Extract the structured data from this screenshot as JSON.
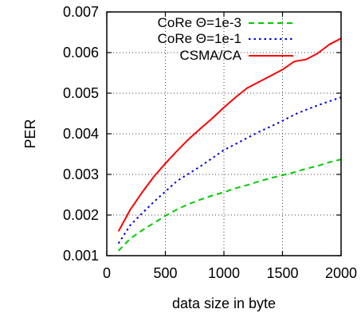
{
  "chart_data": {
    "type": "line",
    "xlabel": "data size in byte",
    "ylabel": "PER",
    "xlim": [
      0,
      2000
    ],
    "ylim": [
      0.001,
      0.007
    ],
    "x_ticks": [
      0,
      500,
      1000,
      1500,
      2000
    ],
    "y_ticks": [
      0.001,
      0.002,
      0.003,
      0.004,
      0.005,
      0.006,
      0.007
    ],
    "x_tick_labels": [
      "0",
      "500",
      "1000",
      "1500",
      "2000"
    ],
    "y_tick_labels": [
      "0.001",
      "0.002",
      "0.003",
      "0.004",
      "0.005",
      "0.006",
      "0.007"
    ],
    "grid": true,
    "legend_position": "top-right",
    "series": [
      {
        "name": "CoRe Θ=1e-3",
        "color": "#00cc00",
        "style": "dashed",
        "x": [
          100,
          200,
          300,
          400,
          500,
          600,
          700,
          800,
          900,
          1000,
          1100,
          1200,
          1300,
          1400,
          1500,
          1600,
          1700,
          1800,
          1900,
          2000
        ],
        "y": [
          0.00112,
          0.00142,
          0.00162,
          0.0018,
          0.00198,
          0.00214,
          0.00227,
          0.00238,
          0.00248,
          0.00256,
          0.00266,
          0.00274,
          0.00283,
          0.00291,
          0.00298,
          0.00305,
          0.00314,
          0.00321,
          0.0033,
          0.00337
        ]
      },
      {
        "name": "CoRe Θ=1e-1",
        "color": "#0000dd",
        "style": "dotted",
        "x": [
          100,
          200,
          300,
          400,
          500,
          600,
          700,
          800,
          900,
          1000,
          1100,
          1200,
          1300,
          1400,
          1500,
          1600,
          1700,
          1800,
          1900,
          2000
        ],
        "y": [
          0.0013,
          0.00175,
          0.00204,
          0.00232,
          0.00258,
          0.00284,
          0.00302,
          0.0032,
          0.0034,
          0.0036,
          0.00375,
          0.0039,
          0.00405,
          0.00418,
          0.00432,
          0.00447,
          0.00459,
          0.0047,
          0.0048,
          0.0049
        ]
      },
      {
        "name": "CSMA/CA",
        "color": "#ff0000",
        "style": "solid",
        "x": [
          100,
          200,
          300,
          400,
          500,
          600,
          700,
          800,
          900,
          1000,
          1100,
          1200,
          1300,
          1400,
          1500,
          1600,
          1700,
          1800,
          1900,
          2000
        ],
        "y": [
          0.0016,
          0.00213,
          0.00255,
          0.00294,
          0.00327,
          0.00358,
          0.00387,
          0.00413,
          0.00438,
          0.00465,
          0.0049,
          0.00513,
          0.00528,
          0.00543,
          0.00558,
          0.00578,
          0.00583,
          0.00598,
          0.0062,
          0.00635
        ]
      }
    ]
  }
}
